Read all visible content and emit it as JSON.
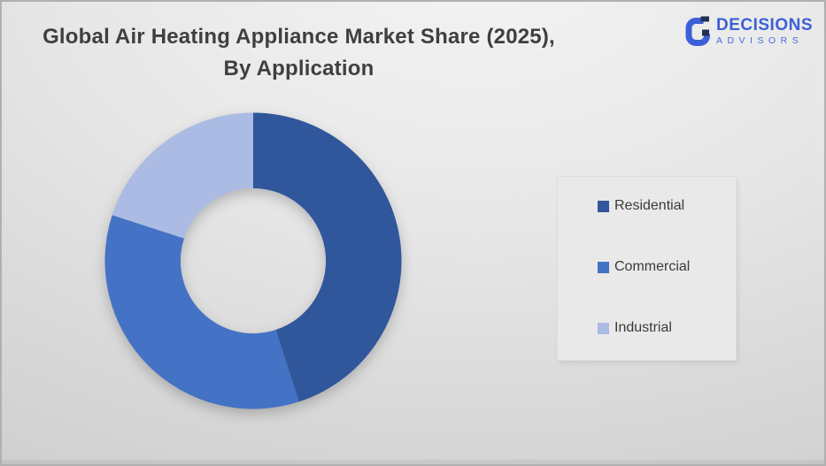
{
  "title": {
    "line1": "Global Air Heating Appliance Market Share (2025),",
    "line2": "By Application",
    "color": "#3f3f3f"
  },
  "logo": {
    "name": "DECISIONS",
    "subname": "ADVISORS",
    "icon": "decisions-g-monogram-icon",
    "blue": "#3d5fd6",
    "navy": "#20304f"
  },
  "chart_data": {
    "type": "pie",
    "subtype": "donut",
    "title": "Global Air Heating Appliance Market Share (2025), By Application",
    "categories": [
      "Residential",
      "Commercial",
      "Industrial"
    ],
    "values": [
      45,
      35,
      20
    ],
    "unit": "%",
    "values_estimated_from_angles": true,
    "colors": [
      "#30569B",
      "#4472C4",
      "#ACBBE3"
    ],
    "start_angle_deg": 0,
    "direction": "clockwise",
    "inner_radius_ratio": 0.49,
    "legend_position": "right",
    "data_labels": false
  },
  "legend": {
    "items": [
      {
        "label": "Residential",
        "color": "#30569B"
      },
      {
        "label": "Commercial",
        "color": "#4472C4"
      },
      {
        "label": "Industrial",
        "color": "#ACBBE3"
      }
    ]
  }
}
